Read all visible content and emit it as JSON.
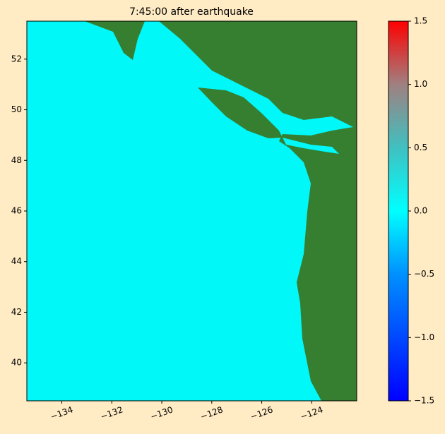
{
  "chart_data": {
    "type": "map",
    "title": "7:45:00 after earthquake",
    "xlim": [
      -135.4,
      -122.2
    ],
    "xticks": [
      {
        "value": -134,
        "label": "−134"
      },
      {
        "value": -132,
        "label": "−132"
      },
      {
        "value": -130,
        "label": "−130"
      },
      {
        "value": -128,
        "label": "−128"
      },
      {
        "value": -126,
        "label": "−126"
      },
      {
        "value": -124,
        "label": "−124"
      }
    ],
    "ylim": [
      38.5,
      53.5
    ],
    "yticks": [
      40,
      42,
      44,
      46,
      48,
      50,
      52
    ],
    "colorbar_lim": [
      -1.5,
      1.5
    ],
    "colorbar_ticks": [
      {
        "value": -1.5,
        "label": "−1.5"
      },
      {
        "value": -1,
        "label": "−1.0"
      },
      {
        "value": -0.5,
        "label": "−0.5"
      },
      {
        "value": 0,
        "label": "0.0"
      },
      0.5,
      {
        "value": 1,
        "label": "1.0"
      },
      1.5
    ]
  }
}
